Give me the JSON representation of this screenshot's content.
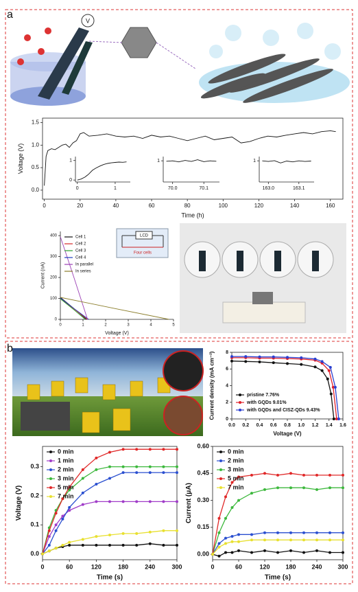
{
  "panel_labels": [
    "a",
    "b"
  ],
  "illustration_a": {
    "voltmeter": "V"
  },
  "chart_data": [
    {
      "type": "line",
      "xlabel": "Time (h)",
      "ylabel": "Voltage (V)",
      "color": "#111111",
      "x": [
        0,
        1,
        2,
        4,
        6,
        8,
        10,
        12,
        14,
        16,
        18,
        20,
        22,
        25,
        30,
        35,
        40,
        45,
        50,
        55,
        60,
        65,
        70,
        75,
        80,
        85,
        90,
        95,
        100,
        105,
        110,
        115,
        120,
        125,
        130,
        135,
        140,
        145,
        150,
        155,
        160,
        163
      ],
      "values": [
        0.1,
        0.75,
        0.88,
        0.92,
        0.9,
        0.95,
        1.0,
        1.02,
        0.95,
        1.05,
        1.1,
        1.25,
        1.28,
        1.2,
        1.22,
        1.25,
        1.2,
        1.18,
        1.2,
        1.15,
        1.22,
        1.18,
        1.2,
        1.15,
        1.1,
        1.15,
        1.2,
        1.12,
        1.15,
        1.18,
        1.05,
        1.08,
        1.15,
        1.2,
        1.18,
        1.22,
        1.25,
        1.28,
        1.25,
        1.3,
        1.32,
        1.3
      ],
      "xlim": [
        -1,
        167
      ],
      "xticks": [
        0,
        20,
        40,
        60,
        80,
        100,
        120,
        140,
        160
      ],
      "ylim": [
        -0.2,
        1.6
      ],
      "yticks": [
        {
          "value": 0,
          "label": "0.0"
        },
        0.5,
        {
          "value": 1,
          "label": "1.0"
        },
        1.5
      ]
    },
    {
      "type": "line",
      "xlabel": "Voltage (V)",
      "ylabel": "Current (nA)",
      "legend": "upper left",
      "annotations": [
        "LCD",
        "Four cells"
      ],
      "series": [
        {
          "name": "Cell 1",
          "color": "#111111",
          "x": [
            0,
            0.6,
            1.15
          ],
          "values": [
            105,
            52,
            0
          ]
        },
        {
          "name": "Cell 2",
          "color": "#d62728",
          "x": [
            0,
            0.6,
            1.2
          ],
          "values": [
            100,
            50,
            0
          ]
        },
        {
          "name": "Cell 3",
          "color": "#2ca02c",
          "x": [
            0,
            0.6,
            1.1
          ],
          "values": [
            98,
            46,
            0
          ]
        },
        {
          "name": "Cell 4",
          "color": "#1f3fbf",
          "x": [
            0,
            0.6,
            1.25
          ],
          "values": [
            102,
            52,
            0
          ]
        },
        {
          "name": "In parallel",
          "color": "#9b3fb5",
          "x": [
            0,
            0.6,
            1.2
          ],
          "values": [
            395,
            200,
            0
          ]
        },
        {
          "name": "In series",
          "color": "#8a7d2a",
          "x": [
            0,
            2.4,
            4.8
          ],
          "values": [
            105,
            52,
            0
          ]
        }
      ],
      "xlim": [
        0,
        5
      ],
      "xticks": [
        0,
        1,
        2,
        3,
        4,
        5
      ],
      "ylim": [
        0,
        420
      ],
      "yticks": [
        0,
        100,
        200,
        300,
        400
      ]
    },
    {
      "type": "line",
      "markers": true,
      "xlabel": "Voltage (V)",
      "ylabel": "Current density (mA cm⁻²)",
      "legend": "lower left",
      "series": [
        {
          "name": "pristine 7.76%",
          "color": "#111111",
          "x": [
            0,
            0.2,
            0.4,
            0.6,
            0.8,
            1.0,
            1.2,
            1.3,
            1.38,
            1.43,
            1.47
          ],
          "values": [
            6.95,
            6.9,
            6.85,
            6.75,
            6.65,
            6.55,
            6.25,
            5.8,
            4.8,
            3.0,
            0
          ]
        },
        {
          "name": "with GQDs 9.01%",
          "color": "#e0202a",
          "x": [
            0,
            0.2,
            0.4,
            0.6,
            0.8,
            1.0,
            1.2,
            1.3,
            1.4,
            1.46,
            1.51
          ],
          "values": [
            7.35,
            7.35,
            7.3,
            7.3,
            7.25,
            7.2,
            7.05,
            6.7,
            5.8,
            3.8,
            0
          ]
        },
        {
          "name": "with GQDs and CISZ-QDs 9.43%",
          "color": "#2a3fd0",
          "x": [
            0,
            0.2,
            0.4,
            0.6,
            0.8,
            1.0,
            1.2,
            1.3,
            1.42,
            1.49,
            1.54
          ],
          "values": [
            7.5,
            7.5,
            7.45,
            7.45,
            7.4,
            7.35,
            7.2,
            6.9,
            6.2,
            3.8,
            0
          ]
        }
      ],
      "xlim": [
        0,
        1.6
      ],
      "xticks": [
        {
          "value": 0,
          "label": "0.0"
        },
        0.2,
        0.4,
        0.6,
        0.8,
        {
          "value": 1,
          "label": "1.0"
        },
        1.2,
        1.4,
        1.6
      ],
      "ylim": [
        0,
        8
      ],
      "yticks": [
        0,
        2,
        4,
        6,
        8
      ]
    },
    {
      "type": "line",
      "markers": true,
      "xlabel": "Time (s)",
      "ylabel": "Voltage (V)",
      "legend": "upper left",
      "x": [
        0,
        15,
        30,
        45,
        60,
        90,
        120,
        150,
        180,
        210,
        240,
        270,
        300
      ],
      "series": [
        {
          "name": "0 min",
          "color": "#111111",
          "values": [
            0,
            0.01,
            0.02,
            0.025,
            0.03,
            0.03,
            0.03,
            0.03,
            0.03,
            0.03,
            0.035,
            0.03,
            0.03
          ]
        },
        {
          "name": "1 min",
          "color": "#a03cc8",
          "values": [
            0,
            0.06,
            0.1,
            0.13,
            0.15,
            0.17,
            0.18,
            0.18,
            0.18,
            0.18,
            0.18,
            0.18,
            0.18
          ]
        },
        {
          "name": "2 min",
          "color": "#2a4fd0",
          "values": [
            0,
            0.03,
            0.08,
            0.12,
            0.16,
            0.21,
            0.24,
            0.26,
            0.28,
            0.28,
            0.28,
            0.28,
            0.28
          ]
        },
        {
          "name": "3 min",
          "color": "#3cb83c",
          "values": [
            0,
            0.09,
            0.15,
            0.19,
            0.22,
            0.26,
            0.29,
            0.3,
            0.3,
            0.3,
            0.3,
            0.3,
            0.3
          ]
        },
        {
          "name": "5 min",
          "color": "#e02828",
          "values": [
            0,
            0.08,
            0.14,
            0.19,
            0.23,
            0.29,
            0.33,
            0.35,
            0.36,
            0.36,
            0.36,
            0.36,
            0.36
          ]
        },
        {
          "name": "7 min",
          "color": "#e8e030",
          "values": [
            0,
            0.01,
            0.02,
            0.03,
            0.04,
            0.05,
            0.06,
            0.065,
            0.07,
            0.07,
            0.075,
            0.08,
            0.08
          ]
        }
      ],
      "xlim": [
        0,
        300
      ],
      "xticks": [
        0,
        60,
        120,
        180,
        240,
        300
      ],
      "ylim": [
        -0.02,
        0.37
      ],
      "yticks": [
        {
          "value": 0,
          "label": "0.0"
        },
        0.1,
        0.2,
        0.3
      ]
    },
    {
      "type": "line",
      "markers": true,
      "xlabel": "Time (s)",
      "ylabel": "Current (μA)",
      "legend": "upper left",
      "x": [
        0,
        15,
        30,
        45,
        60,
        90,
        120,
        150,
        180,
        210,
        240,
        270,
        300
      ],
      "series": [
        {
          "name": "0 min",
          "color": "#111111",
          "values": [
            0,
            -0.01,
            0.01,
            0.01,
            0.02,
            0.01,
            0.02,
            0.01,
            0.02,
            0.01,
            0.02,
            0.01,
            0.01
          ]
        },
        {
          "name": "2 min",
          "color": "#2a4fd0",
          "values": [
            0,
            0.06,
            0.09,
            0.1,
            0.11,
            0.11,
            0.12,
            0.12,
            0.12,
            0.12,
            0.12,
            0.12,
            0.12
          ]
        },
        {
          "name": "3 min",
          "color": "#3cb83c",
          "values": [
            0,
            0.12,
            0.2,
            0.26,
            0.3,
            0.34,
            0.36,
            0.37,
            0.37,
            0.37,
            0.36,
            0.37,
            0.37
          ]
        },
        {
          "name": "5 min",
          "color": "#e02828",
          "values": [
            0,
            0.2,
            0.32,
            0.4,
            0.43,
            0.44,
            0.45,
            0.44,
            0.45,
            0.44,
            0.44,
            0.44,
            0.44
          ]
        },
        {
          "name": "7 min",
          "color": "#e8e030",
          "values": [
            0,
            0.04,
            0.06,
            0.07,
            0.07,
            0.08,
            0.08,
            0.08,
            0.08,
            0.08,
            0.08,
            0.08,
            0.08
          ]
        }
      ],
      "xlim": [
        0,
        300
      ],
      "xticks": [
        0,
        60,
        120,
        180,
        240,
        300
      ],
      "ylim": [
        -0.03,
        0.6
      ],
      "yticks": [
        {
          "value": 0,
          "label": "0.00"
        },
        0.15,
        {
          "value": 0.3,
          "label": "0.30"
        },
        0.45,
        {
          "value": 0.6,
          "label": "0.60"
        }
      ]
    },
    {
      "type": "line",
      "color": "#111111",
      "x": [
        0,
        0.1,
        0.2,
        0.3,
        0.4,
        0.5,
        0.6,
        0.7,
        0.8,
        0.9,
        1.0,
        1.1,
        1.2,
        1.3
      ],
      "values": [
        0,
        0.05,
        0.15,
        0.3,
        0.5,
        0.62,
        0.72,
        0.8,
        0.85,
        0.88,
        0.9,
        0.92,
        0.91,
        0.93
      ],
      "xlim": [
        -0.05,
        1.4
      ],
      "xticks": [
        0,
        1
      ],
      "ylim": [
        -0.1,
        1.2
      ],
      "yticks": [
        0,
        1
      ]
    },
    {
      "type": "line",
      "color": "#111111",
      "x": [
        69.98,
        70.0,
        70.02,
        70.04,
        70.06,
        70.08,
        70.1,
        70.12,
        70.14
      ],
      "values": [
        0.98,
        1.0,
        0.95,
        1.02,
        0.97,
        1.05,
        0.96,
        1.0,
        0.98
      ],
      "xlim": [
        69.97,
        70.15
      ],
      "xticks": [
        {
          "value": 70,
          "label": "70.0"
        },
        70.1
      ],
      "ylim": [
        0,
        1.2
      ],
      "yticks": [
        1
      ]
    },
    {
      "type": "line",
      "color": "#111111",
      "x": [
        162.98,
        163.0,
        163.02,
        163.04,
        163.06,
        163.08,
        163.1,
        163.12,
        163.14
      ],
      "values": [
        1.0,
        0.97,
        1.01,
        0.9,
        0.99,
        0.95,
        1.0,
        0.97,
        0.99
      ],
      "xlim": [
        162.97,
        163.15
      ],
      "xticks": [
        {
          "value": 163,
          "label": "163.0"
        },
        163.1
      ],
      "ylim": [
        0,
        1.2
      ],
      "yticks": [
        1
      ]
    }
  ]
}
